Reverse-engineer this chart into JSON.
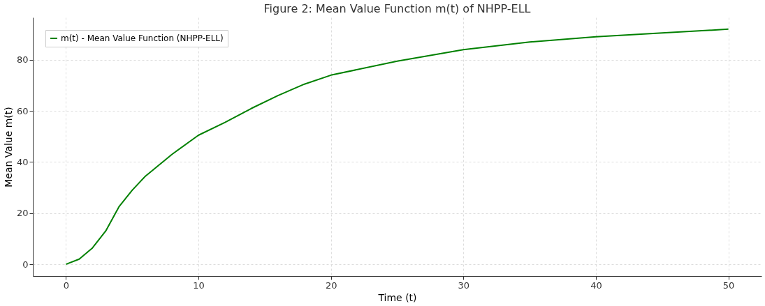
{
  "chart_data": {
    "type": "line",
    "title": "Figure 2: Mean Value Function m(t) of NHPP-ELL",
    "xlabel": "Time (t)",
    "ylabel": "Mean Value m(t)",
    "x": [
      0,
      1,
      2,
      3,
      4,
      5,
      6,
      8,
      10,
      12,
      14,
      16,
      18,
      20,
      25,
      30,
      35,
      40,
      45,
      50
    ],
    "series": [
      {
        "name": "m(t) - Mean Value Function (NHPP-ELL)",
        "color": "#008000",
        "values": [
          0,
          2,
          6.4,
          13,
          22.5,
          29,
          34.5,
          43,
          50.5,
          55.5,
          61,
          66,
          70.5,
          74,
          79.5,
          84,
          87,
          89,
          90.5,
          92
        ]
      }
    ],
    "xlim": [
      -2.5,
      52.5
    ],
    "ylim": [
      -4.6,
      96.6
    ],
    "xticks": [
      0,
      10,
      20,
      30,
      40,
      50
    ],
    "yticks": [
      0,
      20,
      40,
      60,
      80
    ],
    "grid": true,
    "legend": "top left",
    "marker": "none",
    "line_style": "solid"
  }
}
